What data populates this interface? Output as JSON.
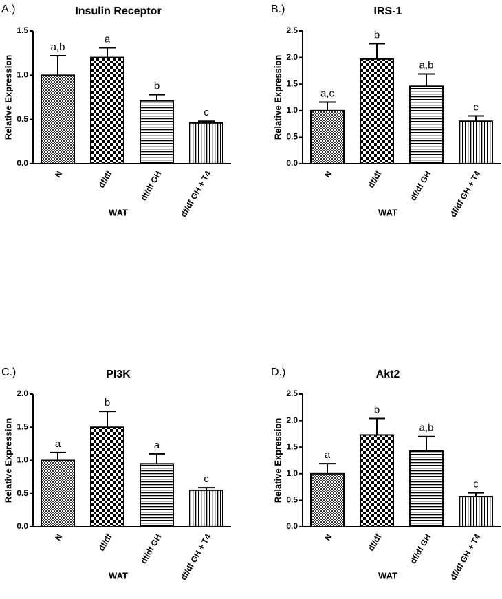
{
  "chart_data": [
    {
      "type": "bar",
      "panel": "A.)",
      "title": "Insulin  Receptor",
      "ylabel": "Relative Expression",
      "xlabel": "WAT",
      "categories": [
        "N",
        "df/df",
        "df/df GH",
        "df/df GH + T4"
      ],
      "values": [
        1.0,
        1.2,
        0.71,
        0.46
      ],
      "errors": [
        0.22,
        0.11,
        0.07,
        0.02
      ],
      "annotations": [
        "a,b",
        "a",
        "b",
        "c"
      ],
      "ylim": [
        0,
        1.5
      ],
      "yticks": [
        {
          "value": 0,
          "label": "0.0"
        },
        0.5,
        {
          "value": 1,
          "label": "1.0"
        },
        1.5
      ]
    },
    {
      "type": "bar",
      "panel": "B.)",
      "title": "IRS-1",
      "ylabel": "Relative Expression",
      "xlabel": "WAT",
      "categories": [
        "N",
        "df/df",
        "df/df GH",
        "df/df GH + T4"
      ],
      "values": [
        1.0,
        1.97,
        1.46,
        0.8
      ],
      "errors": [
        0.16,
        0.29,
        0.23,
        0.1
      ],
      "annotations": [
        "a,c",
        "b",
        "a,b",
        "c"
      ],
      "ylim": [
        0,
        2.5
      ],
      "yticks": [
        {
          "value": 0,
          "label": "0.0"
        },
        0.5,
        {
          "value": 1,
          "label": "1.0"
        },
        1.5,
        {
          "value": 2,
          "label": "2.0"
        },
        2.5
      ]
    },
    {
      "type": "bar",
      "panel": "C.)",
      "title": "PI3K",
      "ylabel": "Relative Expression",
      "xlabel": "WAT",
      "categories": [
        "N",
        "df/df",
        "df/df GH",
        "df/df GH + T4"
      ],
      "values": [
        1.0,
        1.5,
        0.95,
        0.55
      ],
      "errors": [
        0.12,
        0.24,
        0.15,
        0.04
      ],
      "annotations": [
        "a",
        "b",
        "a",
        "c"
      ],
      "ylim": [
        0,
        2.0
      ],
      "yticks": [
        {
          "value": 0,
          "label": "0.0"
        },
        0.5,
        {
          "value": 1,
          "label": "1.0"
        },
        1.5,
        {
          "value": 2,
          "label": "2.0"
        }
      ]
    },
    {
      "type": "bar",
      "panel": "D.)",
      "title": "Akt2",
      "ylabel": "Relative Expression",
      "xlabel": "WAT",
      "categories": [
        "N",
        "df/df",
        "df/df GH",
        "df/df GH + T4"
      ],
      "values": [
        1.0,
        1.73,
        1.43,
        0.57
      ],
      "errors": [
        0.19,
        0.31,
        0.27,
        0.07
      ],
      "annotations": [
        "a",
        "b",
        "a,b",
        "c"
      ],
      "ylim": [
        0,
        2.5
      ],
      "yticks": [
        {
          "value": 0,
          "label": "0.0"
        },
        0.5,
        {
          "value": 1,
          "label": "1.0"
        },
        1.5,
        {
          "value": 2,
          "label": "2.0"
        },
        2.5
      ]
    }
  ]
}
